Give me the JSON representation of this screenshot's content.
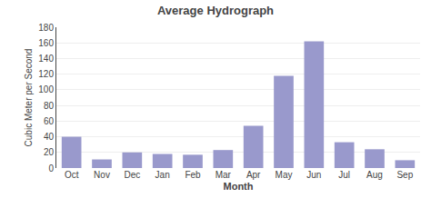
{
  "chart_data": {
    "type": "bar",
    "title": "Average Hydrograph",
    "xlabel": "Month",
    "ylabel": "Cubic Meter per Second",
    "categories": [
      "Oct",
      "Nov",
      "Dec",
      "Jan",
      "Feb",
      "Mar",
      "Apr",
      "May",
      "Jun",
      "Jul",
      "Aug",
      "Sep"
    ],
    "values": [
      40,
      11,
      20,
      18,
      17,
      23,
      54,
      118,
      162,
      33,
      24,
      10
    ],
    "color": "#9999cc",
    "ylim": [
      0,
      180
    ],
    "yticks": [
      0,
      20,
      40,
      60,
      80,
      100,
      120,
      140,
      160,
      180
    ],
    "grid": true
  }
}
